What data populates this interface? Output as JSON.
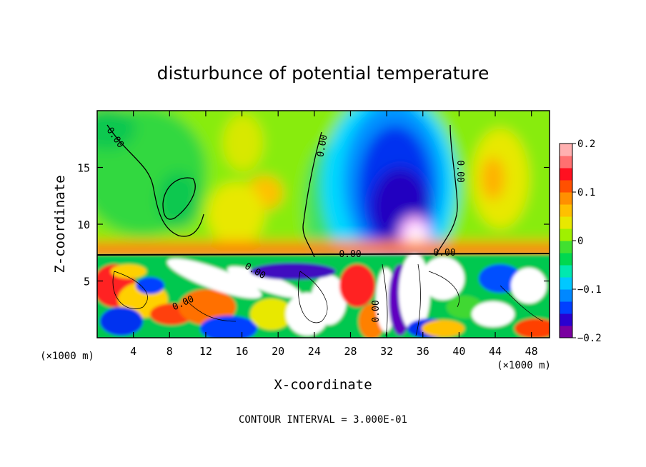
{
  "chart_data": {
    "type": "heatmap",
    "title": "disturbunce of potential temperature",
    "xlabel": "X-coordinate",
    "ylabel": "Z-coordinate",
    "x_unit": "(×1000 m)",
    "x_unit_right": "(×1000 m)",
    "footer": "CONTOUR INTERVAL = 3.000E-01",
    "xlim": [
      0,
      50
    ],
    "ylim": [
      0,
      20
    ],
    "x_ticks": [
      4,
      8,
      12,
      16,
      20,
      24,
      28,
      32,
      36,
      40,
      44,
      48
    ],
    "x_tick_labels": [
      "4",
      "8",
      "12",
      "16",
      "20",
      "24",
      "28",
      "32",
      "36",
      "40",
      "44",
      "48"
    ],
    "y_ticks": [
      5,
      10,
      15
    ],
    "y_tick_labels": [
      "5",
      "10",
      "15"
    ],
    "colorbar": {
      "range": [
        -0.2,
        0.2
      ],
      "ticks": [
        0.2,
        0.1,
        0,
        -0.1,
        -0.2
      ],
      "tick_labels": [
        "0.2",
        "0.1",
        "0",
        "−0.1",
        "−0.2"
      ],
      "colors": [
        "#7a00a0",
        "#2a00d0",
        "#0040ff",
        "#0088ff",
        "#00c8ff",
        "#00e8b0",
        "#00d850",
        "#40e030",
        "#a0f000",
        "#e8e800",
        "#ffc000",
        "#ff9000",
        "#ff5000",
        "#ff1020",
        "#ff7070",
        "#ffb0b0"
      ]
    },
    "contour_labels": [
      "0.00",
      "0.00",
      "0.00",
      "0.00",
      "0.00",
      "0.00",
      "0.00",
      "0.00"
    ]
  }
}
